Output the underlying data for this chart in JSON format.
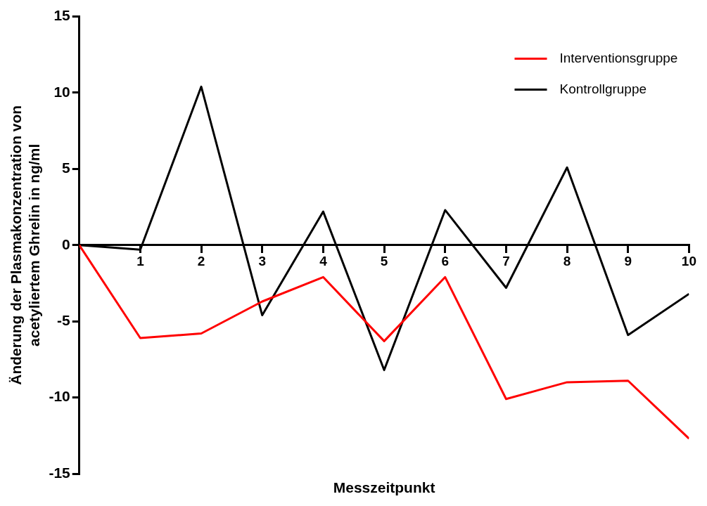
{
  "chart_data": {
    "type": "line",
    "xlabel": "Messzeitpunkt",
    "ylabel": "Änderung der Plasmakonzentration von\nacetyliertem Ghrelin in ng/ml",
    "x": [
      0,
      1,
      2,
      3,
      4,
      5,
      6,
      7,
      8,
      9,
      10
    ],
    "series": [
      {
        "name": "Interventionsgruppe",
        "color": "#ff0000",
        "values": [
          0,
          -6.1,
          -5.8,
          -3.7,
          -2.1,
          -6.3,
          -2.1,
          -10.1,
          -9.0,
          -8.9,
          -12.7
        ]
      },
      {
        "name": "Kontrollgruppe",
        "color": "#000000",
        "values": [
          0,
          -0.3,
          10.4,
          -4.6,
          2.2,
          -8.2,
          2.3,
          -2.8,
          5.1,
          -5.9,
          -3.2
        ]
      }
    ],
    "xlim": [
      0,
      10
    ],
    "xticks": [
      1,
      2,
      3,
      4,
      5,
      6,
      7,
      8,
      9,
      10
    ],
    "ylim": [
      -15,
      15
    ],
    "yticks": [
      -15,
      -10,
      -5,
      0,
      5,
      10,
      15
    ],
    "grid": false,
    "legend": "top right",
    "marker": "none"
  }
}
